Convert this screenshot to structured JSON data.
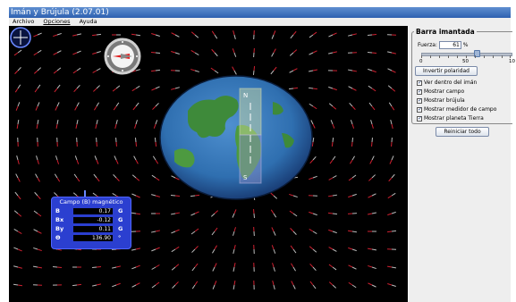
{
  "window": {
    "title": "Imán y Brújula (2.07.01)"
  },
  "menu": {
    "items": [
      "Archivo",
      "Opciones",
      "Ayuda"
    ]
  },
  "panel": {
    "group_title": "Barra imantada",
    "force_label": "Fuerza:",
    "force_value": "61",
    "force_unit": "%",
    "force_fraction": 0.61,
    "slider_ticks": [
      "0",
      "50",
      "10"
    ],
    "invert_button": "Invertir polaridad",
    "checkboxes": [
      {
        "label": "Ver dentro del imán",
        "checked": true
      },
      {
        "label": "Mostrar campo",
        "checked": true
      },
      {
        "label": "Mostrar brújula",
        "checked": true
      },
      {
        "label": "Mostrar medidor de campo",
        "checked": true
      },
      {
        "label": "Mostrar planeta Tierra",
        "checked": true
      }
    ],
    "reset_button": "Reiniciar todo"
  },
  "magnet": {
    "north_label": "N",
    "south_label": "S"
  },
  "meter": {
    "title": "Campo (B) magnético",
    "rows": [
      {
        "label": "B",
        "value": "0.17",
        "unit": "G"
      },
      {
        "label": "Bx",
        "value": "-0.12",
        "unit": "G"
      },
      {
        "label": "By",
        "value": "0.11",
        "unit": "G"
      },
      {
        "label": "Θ",
        "value": "136.90",
        "unit": "°"
      }
    ]
  },
  "colors": {
    "ocean": "#2f6fb0",
    "land": "#3e8a3a",
    "field_needle_red": "#d02030",
    "meter_bg": "#2b3fd0",
    "compass_needle": "#e02020"
  },
  "icons": {
    "compass": "compass-icon",
    "probe": "field-probe-icon"
  }
}
